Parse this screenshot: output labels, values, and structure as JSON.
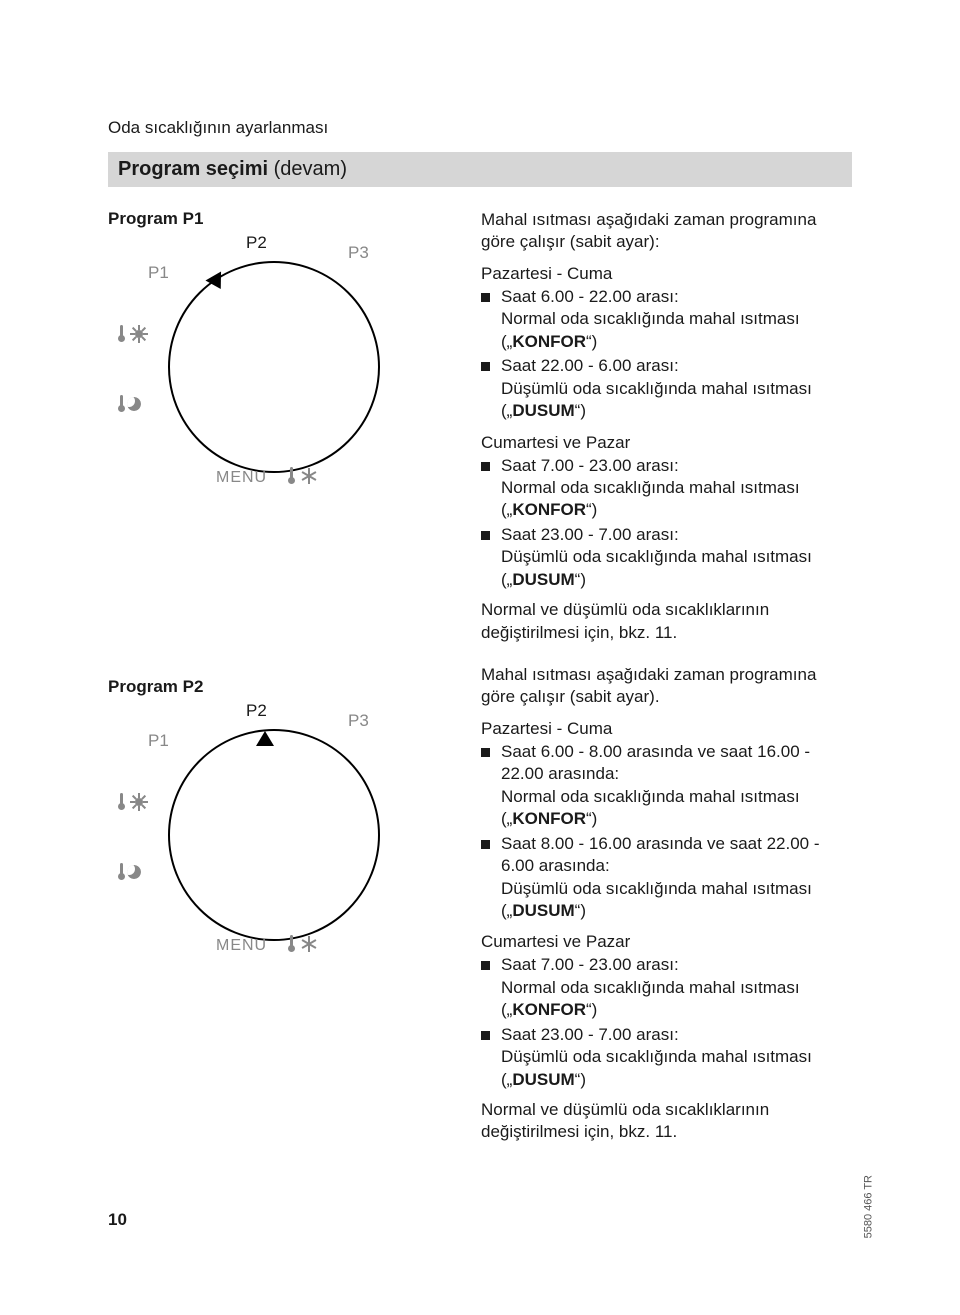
{
  "chapter": "Oda sıcaklığının ayarlanması",
  "section_title_bold": "Program seçimi",
  "section_title_cont": "(devam)",
  "page_number": "10",
  "doc_id": "5580 466 TR",
  "dial_common": {
    "p1": "P1",
    "p2": "P2",
    "p3": "P3",
    "menu": "MENU"
  },
  "p1": {
    "title": "Program P1",
    "intro": "Mahal ısıtması aşağıdaki zaman prog­ramına göre çalışır (sabit ayar):",
    "weekday_head": "Pazartesi - Cuma",
    "weekday_items": [
      "Saat 6.00 - 22.00 arası:\nNormal oda sıcaklığında mahal ısıt­ması („KONFOR“)",
      "Saat 22.00 - 6.00 arası:\nDüşümlü oda sıcaklığında mahal ısıtması („DUSUM“)"
    ],
    "weekend_head": "Cumartesi ve Pazar",
    "weekend_items": [
      "Saat 7.00 - 23.00 arası:\nNormal oda sıcaklığında mahal ısıt­ması („KONFOR“)",
      "Saat 23.00 - 7.00 arası:\nDüşümlü oda sıcaklığında mahal ısıtması („DUSUM“)"
    ],
    "footnote": "Normal ve düşümlü oda sıcaklıkları­nın değiştirilmesi için, bkz. 11."
  },
  "p2": {
    "title": "Program P2",
    "intro": "Mahal ısıtması aşağıdaki zaman prog­ramına göre çalışır (sabit ayar).",
    "weekday_head": "Pazartesi - Cuma",
    "weekday_items": [
      "Saat 6.00 - 8.00 arasında ve saat 16.00 - 22.00 arasında:\nNormal oda sıcaklığında mahal ısıt­ması („KONFOR“)",
      "Saat 8.00 - 16.00 arasında ve saat 22.00 - 6.00 arasında:\nDüşümlü oda sıcaklığında mahal ısıtması („DUSUM“)"
    ],
    "weekend_head": "Cumartesi ve Pazar",
    "weekend_items": [
      "Saat 7.00 - 23.00 arası:\nNormal oda sıcaklığında mahal ısıt­ması („KONFOR“)",
      "Saat 23.00 - 7.00 arası:\nDüşümlü oda sıcaklığında mahal ısıtması („DUSUM“)"
    ],
    "footnote": "Normal ve düşümlü oda sıcaklıkları­nın değiştirilmesi için, bkz. 11."
  }
}
